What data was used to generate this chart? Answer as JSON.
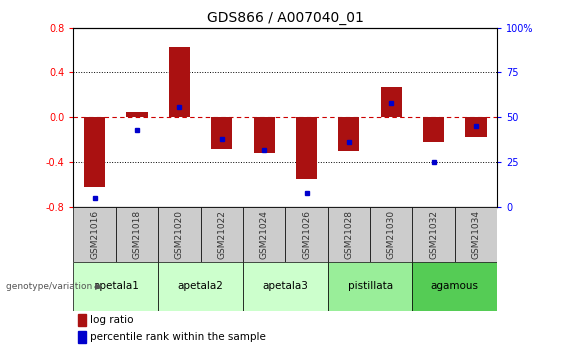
{
  "title": "GDS866 / A007040_01",
  "samples": [
    "GSM21016",
    "GSM21018",
    "GSM21020",
    "GSM21022",
    "GSM21024",
    "GSM21026",
    "GSM21028",
    "GSM21030",
    "GSM21032",
    "GSM21034"
  ],
  "log_ratio": [
    -0.62,
    0.05,
    0.63,
    -0.28,
    -0.32,
    -0.55,
    -0.3,
    0.27,
    -0.22,
    -0.18
  ],
  "percentile_rank": [
    5,
    43,
    56,
    38,
    32,
    8,
    36,
    58,
    25,
    45
  ],
  "ylim_left": [
    -0.8,
    0.8
  ],
  "ylim_right": [
    0,
    100
  ],
  "yticks_left": [
    -0.8,
    -0.4,
    0.0,
    0.4,
    0.8
  ],
  "yticks_right": [
    0,
    25,
    50,
    75,
    100
  ],
  "bar_color": "#aa1111",
  "marker_color": "#0000cc",
  "zero_line_color": "#cc0000",
  "dotted_line_color": "#000000",
  "gsm_box_color": "#cccccc",
  "groups": [
    {
      "name": "apetala1",
      "start": 0,
      "end": 2,
      "color": "#ccffcc"
    },
    {
      "name": "apetala2",
      "start": 2,
      "end": 4,
      "color": "#ccffcc"
    },
    {
      "name": "apetala3",
      "start": 4,
      "end": 6,
      "color": "#ccffcc"
    },
    {
      "name": "pistillata",
      "start": 6,
      "end": 8,
      "color": "#99ee99"
    },
    {
      "name": "agamous",
      "start": 8,
      "end": 10,
      "color": "#55cc55"
    }
  ],
  "legend_label_red": "log ratio",
  "legend_label_blue": "percentile rank within the sample",
  "xlabel_label": "genotype/variation",
  "title_fontsize": 10,
  "tick_fontsize": 7,
  "legend_fontsize": 7.5,
  "gsm_fontsize": 6.5,
  "group_fontsize": 7.5
}
